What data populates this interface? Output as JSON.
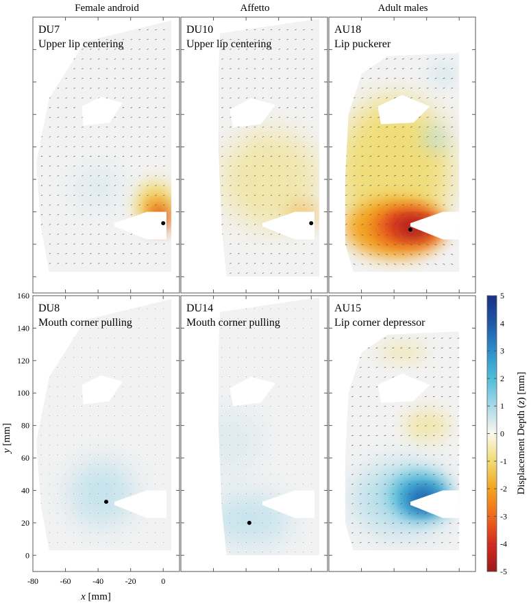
{
  "column_titles": [
    "Female android",
    "Affetto",
    "Adult males"
  ],
  "panels": [
    {
      "code": "DU7",
      "name": "Upper lip centering",
      "pattern": "red-right",
      "marker": [
        0,
        33
      ]
    },
    {
      "code": "DU10",
      "name": "Upper lip centering",
      "pattern": "yellow-right",
      "marker": [
        0,
        33
      ]
    },
    {
      "code": "AU18",
      "name": "Lip puckerer",
      "pattern": "red-pucker",
      "marker": [
        -30,
        29
      ]
    },
    {
      "code": "DU8",
      "name": "Mouth corner pulling",
      "pattern": "blue-light",
      "marker": [
        -35,
        33
      ]
    },
    {
      "code": "DU14",
      "name": "Mouth corner pulling",
      "pattern": "blue-light-low",
      "marker": [
        -38,
        20
      ]
    },
    {
      "code": "AU15",
      "name": "Lip corner depressor",
      "pattern": "blue-strong",
      "marker": null
    }
  ],
  "colors": {
    "frame": "#555555",
    "background_field": "#f2f2f2",
    "arrow": "#555555",
    "marker": "#000000"
  },
  "chart_data": {
    "type": "heatmap",
    "title": "",
    "xlabel_var": "x",
    "xlabel_unit": "[mm]",
    "ylabel_var": "y",
    "ylabel_unit": "[mm]",
    "xlim": [
      -80,
      10
    ],
    "ylim": [
      -10,
      160
    ],
    "x_ticks": [
      "-80",
      "-60",
      "-40",
      "-20",
      "0"
    ],
    "x_tick_values": [
      -80,
      -60,
      -40,
      -20,
      0
    ],
    "y_ticks": [
      "0",
      "20",
      "40",
      "60",
      "80",
      "100",
      "120",
      "140",
      "160"
    ],
    "y_tick_values": [
      0,
      20,
      40,
      60,
      80,
      100,
      120,
      140,
      160
    ],
    "colorbar": {
      "label_prefix": "Displacement Depth (",
      "label_var": "z",
      "label_suffix": ") [mm]",
      "range": [
        -5,
        5
      ],
      "ticks": [
        "5",
        "4",
        "3",
        "2",
        "1",
        "0",
        "-1",
        "-2",
        "-3",
        "-4",
        "-5"
      ],
      "tick_values": [
        5,
        4,
        3,
        2,
        1,
        0,
        -1,
        -2,
        -3,
        -4,
        -5
      ],
      "colormap": [
        [
          -5,
          "#9c1b1b"
        ],
        [
          -4,
          "#d42a20"
        ],
        [
          -3,
          "#ec6a1e"
        ],
        [
          -2,
          "#f3a31f"
        ],
        [
          -1,
          "#f0dc72"
        ],
        [
          0,
          "#fbf8ee"
        ],
        [
          1,
          "#a9d9e9"
        ],
        [
          2,
          "#4fbdd8"
        ],
        [
          3,
          "#2e8fc9"
        ],
        [
          4,
          "#1f57a8"
        ],
        [
          5,
          "#1a2f85"
        ]
      ]
    }
  }
}
